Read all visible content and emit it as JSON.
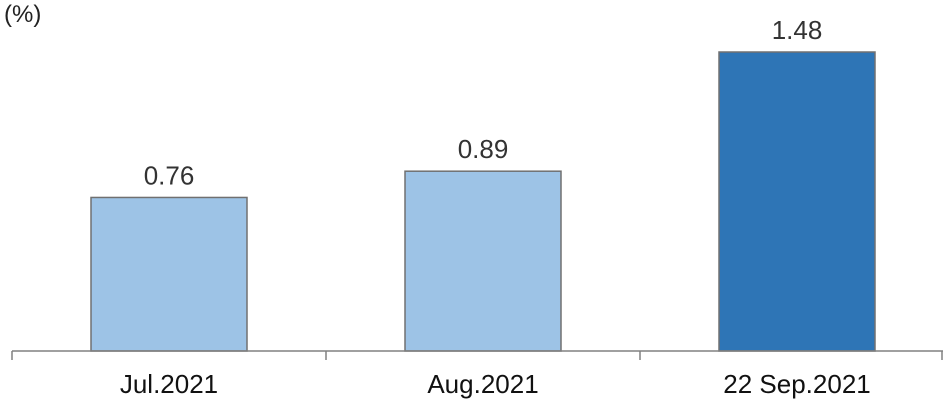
{
  "chart_data": {
    "type": "bar",
    "unit_label": "(%)",
    "title": "",
    "xlabel": "",
    "ylabel": "",
    "categories": [
      "Jul.2021",
      "Aug.2021",
      "22 Sep.2021"
    ],
    "values": [
      0.76,
      0.89,
      1.48
    ],
    "data_labels": [
      "0.76",
      "0.89",
      "1.48"
    ],
    "colors": [
      "#9dc3e6",
      "#9dc3e6",
      "#2e75b6"
    ],
    "border_color": "#707070",
    "axis_color": "#808080",
    "ylim": [
      0,
      1.48
    ],
    "grid": false,
    "legend": "none"
  }
}
